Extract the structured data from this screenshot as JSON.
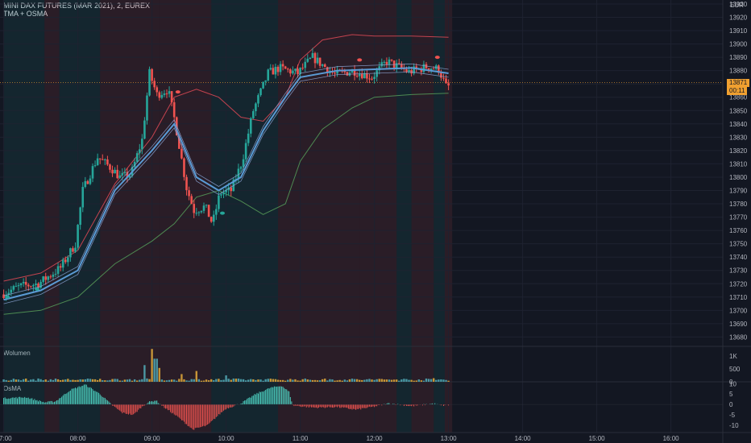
{
  "header": {
    "symbol": "MINI DAX FUTURES (MAR 2021), 2, EUREX",
    "indicator": "TMA + OSMA"
  },
  "currency": "EUR",
  "price_tag": {
    "value": "13871",
    "timer": "00:11"
  },
  "colors": {
    "background": "#131722",
    "bull": "#26a69a",
    "bear": "#ef5350",
    "tma_line": "#5b9bd5",
    "upper_band": "#c2434f",
    "lower_band": "#4e8a52",
    "price_tag": "#f0a030"
  },
  "chart_data": [
    {
      "type": "candlestick",
      "pane": "price",
      "y_ticks": [
        13680,
        13690,
        13700,
        13710,
        13720,
        13730,
        13740,
        13750,
        13760,
        13770,
        13780,
        13790,
        13800,
        13810,
        13820,
        13830,
        13840,
        13850,
        13860,
        13870,
        13880,
        13890,
        13900,
        13910,
        13920,
        13930
      ],
      "ylim": [
        13673,
        13933
      ],
      "x_ticks": [
        "07:00",
        "08:00",
        "09:00",
        "10:00",
        "11:00",
        "12:00",
        "13:00",
        "14:00",
        "15:00",
        "16:00"
      ],
      "price_path": [
        [
          7.0,
          13712
        ],
        [
          7.25,
          13718
        ],
        [
          7.5,
          13720
        ],
        [
          7.8,
          13732
        ],
        [
          8.0,
          13750
        ],
        [
          8.1,
          13790
        ],
        [
          8.3,
          13815
        ],
        [
          8.5,
          13806
        ],
        [
          8.6,
          13800
        ],
        [
          8.75,
          13802
        ],
        [
          8.9,
          13828
        ],
        [
          9.0,
          13878
        ],
        [
          9.1,
          13862
        ],
        [
          9.25,
          13866
        ],
        [
          9.35,
          13840
        ],
        [
          9.5,
          13792
        ],
        [
          9.6,
          13775
        ],
        [
          9.75,
          13778
        ],
        [
          9.85,
          13765
        ],
        [
          9.95,
          13788
        ],
        [
          10.1,
          13790
        ],
        [
          10.25,
          13812
        ],
        [
          10.4,
          13850
        ],
        [
          10.6,
          13878
        ],
        [
          10.75,
          13882
        ],
        [
          11.0,
          13878
        ],
        [
          11.2,
          13890
        ],
        [
          11.5,
          13877
        ],
        [
          11.75,
          13880
        ],
        [
          12.0,
          13875
        ],
        [
          12.2,
          13887
        ],
        [
          12.5,
          13879
        ],
        [
          12.75,
          13883
        ],
        [
          12.9,
          13881
        ],
        [
          13.0,
          13868
        ]
      ],
      "tma_path": [
        [
          7.0,
          13708
        ],
        [
          7.5,
          13715
        ],
        [
          8.0,
          13730
        ],
        [
          8.5,
          13790
        ],
        [
          9.0,
          13820
        ],
        [
          9.3,
          13840
        ],
        [
          9.6,
          13800
        ],
        [
          9.9,
          13790
        ],
        [
          10.2,
          13800
        ],
        [
          10.5,
          13835
        ],
        [
          10.8,
          13860
        ],
        [
          11.0,
          13875
        ],
        [
          11.5,
          13880
        ],
        [
          12.0,
          13881
        ],
        [
          12.5,
          13882
        ],
        [
          13.0,
          13878
        ]
      ],
      "upper_band_path": [
        [
          7.0,
          13722
        ],
        [
          7.5,
          13728
        ],
        [
          8.0,
          13745
        ],
        [
          8.5,
          13795
        ],
        [
          9.0,
          13830
        ],
        [
          9.3,
          13860
        ],
        [
          9.6,
          13866
        ],
        [
          9.9,
          13860
        ],
        [
          10.2,
          13845
        ],
        [
          10.5,
          13842
        ],
        [
          10.8,
          13860
        ],
        [
          11.0,
          13888
        ],
        [
          11.3,
          13903
        ],
        [
          11.7,
          13907
        ],
        [
          12.0,
          13906
        ],
        [
          12.5,
          13906
        ],
        [
          13.0,
          13905
        ]
      ],
      "lower_band_path": [
        [
          7.0,
          13697
        ],
        [
          7.5,
          13700
        ],
        [
          8.0,
          13710
        ],
        [
          8.5,
          13735
        ],
        [
          9.0,
          13752
        ],
        [
          9.3,
          13765
        ],
        [
          9.6,
          13785
        ],
        [
          9.9,
          13790
        ],
        [
          10.2,
          13782
        ],
        [
          10.5,
          13772
        ],
        [
          10.8,
          13780
        ],
        [
          11.0,
          13812
        ],
        [
          11.3,
          13836
        ],
        [
          11.7,
          13852
        ],
        [
          12.0,
          13860
        ],
        [
          12.5,
          13862
        ],
        [
          13.0,
          13863
        ]
      ],
      "signals": [
        {
          "time": 7.05,
          "price": 13710,
          "side": "buy"
        },
        {
          "time": 7.45,
          "price": 13716,
          "side": "buy"
        },
        {
          "time": 9.35,
          "price": 13864,
          "side": "sell"
        },
        {
          "time": 9.95,
          "price": 13773,
          "side": "buy"
        },
        {
          "time": 11.8,
          "price": 13888,
          "side": "sell"
        },
        {
          "time": 12.85,
          "price": 13890,
          "side": "sell"
        }
      ],
      "zones": [
        {
          "from": 7.0,
          "to": 7.55,
          "tone": "bull"
        },
        {
          "from": 7.55,
          "to": 7.75,
          "tone": "bear"
        },
        {
          "from": 7.75,
          "to": 8.3,
          "tone": "bull"
        },
        {
          "from": 8.3,
          "to": 9.1,
          "tone": "bear"
        },
        {
          "from": 9.1,
          "to": 9.8,
          "tone": "bear"
        },
        {
          "from": 9.8,
          "to": 10.0,
          "tone": "bull"
        },
        {
          "from": 10.0,
          "to": 10.7,
          "tone": "bull"
        },
        {
          "from": 10.7,
          "to": 11.8,
          "tone": "bear"
        },
        {
          "from": 11.8,
          "to": 12.3,
          "tone": "bear"
        },
        {
          "from": 12.3,
          "to": 12.5,
          "tone": "bull"
        },
        {
          "from": 12.5,
          "to": 12.8,
          "tone": "bear"
        },
        {
          "from": 12.8,
          "to": 12.95,
          "tone": "bull"
        },
        {
          "from": 12.95,
          "to": 13.05,
          "tone": "bear"
        }
      ],
      "last_price": 13871
    },
    {
      "type": "bar",
      "pane": "volume",
      "title": "Wolumen",
      "y_ticks": [
        {
          "value": 1000,
          "label": "1K"
        },
        {
          "value": 500,
          "label": "500"
        },
        {
          "value": 0,
          "label": "0"
        }
      ],
      "ylim": [
        0,
        1350
      ],
      "spikes": [
        [
          8.9,
          650
        ],
        [
          9.0,
          1280
        ],
        [
          9.05,
          900
        ],
        [
          9.1,
          540
        ],
        [
          9.4,
          300
        ],
        [
          9.6,
          420
        ],
        [
          10.0,
          250
        ],
        [
          12.8,
          140
        ]
      ]
    },
    {
      "type": "histogram",
      "pane": "osma",
      "title": "OsMA",
      "y_ticks": [
        10,
        5,
        0,
        -5,
        -10
      ],
      "ylim": [
        -13.5,
        10.5
      ],
      "profile": [
        [
          7.0,
          3
        ],
        [
          7.3,
          3.5
        ],
        [
          7.55,
          1
        ],
        [
          7.7,
          1.5
        ],
        [
          7.9,
          7
        ],
        [
          8.1,
          9.5
        ],
        [
          8.3,
          5
        ],
        [
          8.45,
          0
        ],
        [
          8.6,
          -4
        ],
        [
          8.75,
          -5
        ],
        [
          8.85,
          -1.5
        ],
        [
          8.95,
          1
        ],
        [
          9.05,
          2
        ],
        [
          9.15,
          -1
        ],
        [
          9.35,
          -6
        ],
        [
          9.55,
          -12
        ],
        [
          9.75,
          -10
        ],
        [
          9.9,
          -5
        ],
        [
          10.0,
          -2
        ],
        [
          10.2,
          0.5
        ],
        [
          10.4,
          5
        ],
        [
          10.6,
          8
        ],
        [
          10.75,
          9
        ],
        [
          10.85,
          6
        ],
        [
          10.9,
          -0.5
        ],
        [
          11.2,
          -1.5
        ],
        [
          11.5,
          -1.2
        ],
        [
          11.75,
          -2.5
        ],
        [
          12.0,
          -1
        ],
        [
          12.2,
          0.5
        ],
        [
          12.5,
          -0.8
        ],
        [
          12.8,
          0.4
        ],
        [
          12.9,
          -0.5
        ],
        [
          13.0,
          -0.3
        ]
      ]
    }
  ]
}
